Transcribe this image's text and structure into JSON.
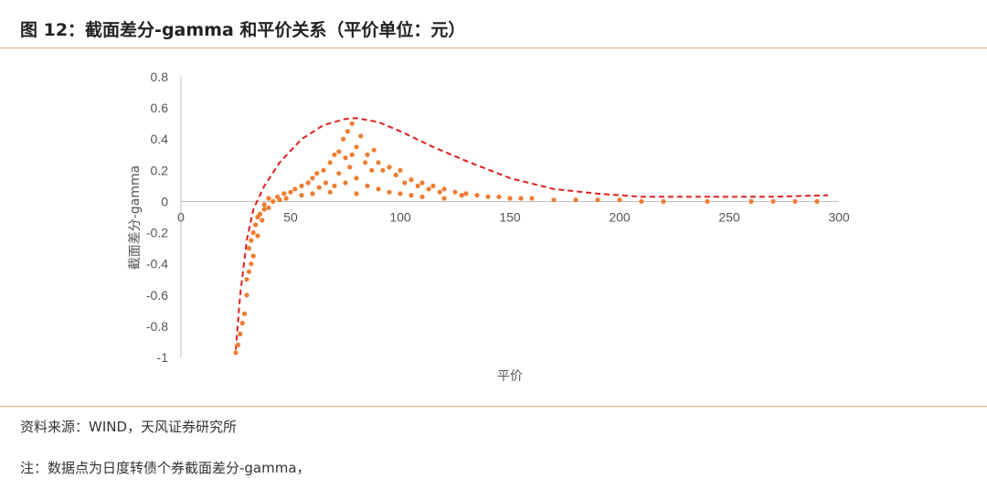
{
  "header": {
    "title": "图 12：截面差分-gamma 和平价关系（平价单位：元）"
  },
  "footer": {
    "source": "资料来源：WIND，天风证券研究所",
    "note": "注：数据点为日度转债个券截面差分-gamma，"
  },
  "colors": {
    "accent_line": "#f2a46a",
    "points": "#ed7d31",
    "envelope": "#e02020"
  },
  "chart_data": {
    "type": "scatter",
    "xlabel": "平价",
    "ylabel": "截面差分-gamma",
    "xlim": [
      0,
      300
    ],
    "ylim": [
      -1,
      0.8
    ],
    "x_ticks": [
      "0",
      "50",
      "100",
      "150",
      "200",
      "250",
      "300"
    ],
    "y_ticks": [
      "0.8",
      "0.6",
      "0.4",
      "0.2",
      "0",
      "-0.2",
      "-0.4",
      "-0.6",
      "-0.8",
      "-1"
    ],
    "grid": false,
    "envelope_style": "dashed",
    "series": [
      {
        "points": [
          [
            25,
            -0.97
          ],
          [
            26,
            -0.92
          ],
          [
            27,
            -0.85
          ],
          [
            28,
            -0.78
          ],
          [
            29,
            -0.72
          ],
          [
            30,
            -0.6
          ],
          [
            30,
            -0.5
          ],
          [
            31,
            -0.45
          ],
          [
            31,
            -0.3
          ],
          [
            32,
            -0.4
          ],
          [
            32,
            -0.25
          ],
          [
            33,
            -0.2
          ],
          [
            33,
            -0.35
          ],
          [
            34,
            -0.15
          ],
          [
            35,
            -0.1
          ],
          [
            35,
            -0.22
          ],
          [
            36,
            -0.08
          ],
          [
            37,
            -0.12
          ],
          [
            38,
            -0.05
          ],
          [
            38,
            -0.02
          ],
          [
            40,
            -0.04
          ],
          [
            40,
            0.02
          ],
          [
            42,
            0.0
          ],
          [
            44,
            0.03
          ],
          [
            45,
            0.01
          ],
          [
            47,
            0.05
          ],
          [
            48,
            0.02
          ],
          [
            50,
            0.06
          ],
          [
            52,
            0.08
          ],
          [
            55,
            0.1
          ],
          [
            55,
            0.04
          ],
          [
            58,
            0.12
          ],
          [
            60,
            0.15
          ],
          [
            60,
            0.05
          ],
          [
            62,
            0.18
          ],
          [
            63,
            0.09
          ],
          [
            65,
            0.2
          ],
          [
            66,
            0.12
          ],
          [
            68,
            0.25
          ],
          [
            68,
            0.06
          ],
          [
            70,
            0.3
          ],
          [
            70,
            0.1
          ],
          [
            72,
            0.32
          ],
          [
            72,
            0.18
          ],
          [
            74,
            0.4
          ],
          [
            75,
            0.28
          ],
          [
            75,
            0.12
          ],
          [
            76,
            0.45
          ],
          [
            77,
            0.22
          ],
          [
            78,
            0.5
          ],
          [
            78,
            0.3
          ],
          [
            80,
            0.35
          ],
          [
            80,
            0.15
          ],
          [
            80,
            0.05
          ],
          [
            82,
            0.42
          ],
          [
            84,
            0.25
          ],
          [
            85,
            0.3
          ],
          [
            85,
            0.1
          ],
          [
            87,
            0.2
          ],
          [
            88,
            0.33
          ],
          [
            90,
            0.25
          ],
          [
            90,
            0.08
          ],
          [
            92,
            0.2
          ],
          [
            95,
            0.22
          ],
          [
            95,
            0.06
          ],
          [
            98,
            0.17
          ],
          [
            100,
            0.2
          ],
          [
            100,
            0.05
          ],
          [
            102,
            0.12
          ],
          [
            105,
            0.14
          ],
          [
            105,
            0.04
          ],
          [
            108,
            0.1
          ],
          [
            110,
            0.12
          ],
          [
            110,
            0.03
          ],
          [
            113,
            0.08
          ],
          [
            115,
            0.1
          ],
          [
            118,
            0.06
          ],
          [
            120,
            0.08
          ],
          [
            120,
            0.02
          ],
          [
            125,
            0.06
          ],
          [
            128,
            0.04
          ],
          [
            130,
            0.05
          ],
          [
            135,
            0.04
          ],
          [
            140,
            0.03
          ],
          [
            145,
            0.03
          ],
          [
            150,
            0.02
          ],
          [
            155,
            0.02
          ],
          [
            160,
            0.02
          ],
          [
            170,
            0.01
          ],
          [
            180,
            0.01
          ],
          [
            190,
            0.01
          ],
          [
            200,
            0.01
          ],
          [
            210,
            0.0
          ],
          [
            220,
            0.0
          ],
          [
            240,
            0.0
          ],
          [
            260,
            0.0
          ],
          [
            270,
            0.0
          ],
          [
            280,
            0.0
          ],
          [
            290,
            0.0
          ]
        ]
      }
    ],
    "envelope": [
      [
        25,
        -0.95
      ],
      [
        27,
        -0.6
      ],
      [
        30,
        -0.25
      ],
      [
        33,
        -0.05
      ],
      [
        38,
        0.1
      ],
      [
        45,
        0.25
      ],
      [
        55,
        0.4
      ],
      [
        65,
        0.49
      ],
      [
        75,
        0.53
      ],
      [
        80,
        0.535
      ],
      [
        90,
        0.51
      ],
      [
        100,
        0.45
      ],
      [
        115,
        0.35
      ],
      [
        130,
        0.26
      ],
      [
        150,
        0.15
      ],
      [
        170,
        0.08
      ],
      [
        190,
        0.05
      ],
      [
        210,
        0.03
      ],
      [
        240,
        0.03
      ],
      [
        270,
        0.03
      ],
      [
        295,
        0.04
      ]
    ]
  }
}
